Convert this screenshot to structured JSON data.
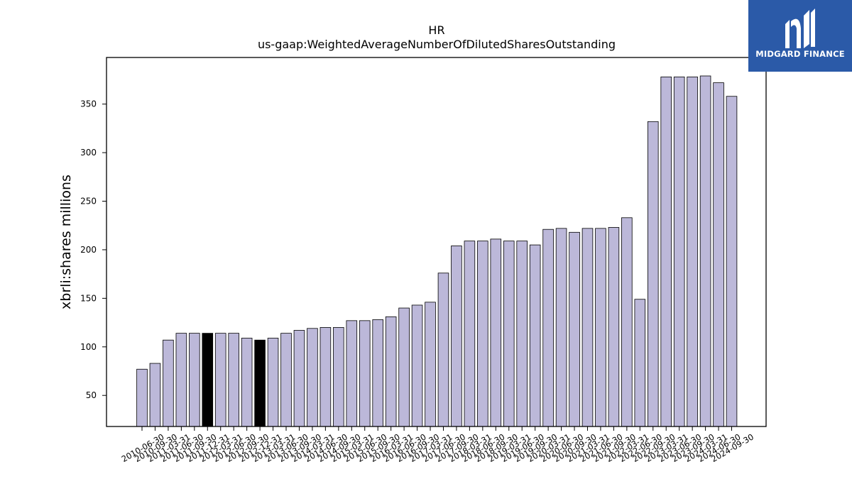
{
  "chart_data": {
    "type": "bar",
    "title": "HR",
    "subtitle": "us-gaap:WeightedAverageNumberOfDilutedSharesOutstanding",
    "xlabel": "",
    "ylabel": "xbrli:shares millions",
    "ylim": [
      18,
      398
    ],
    "yticks": [
      50,
      100,
      150,
      200,
      250,
      300,
      350
    ],
    "grid": false,
    "bar_color": "#bcb8d9",
    "highlight_color": "#000000",
    "categories": [
      "2010-06-30",
      "2010-09-30",
      "2011-03-31",
      "2011-06-30",
      "2011-09-30",
      "2011-12-31",
      "2012-03-31",
      "2012-06-30",
      "2012-09-30",
      "2012-12-31",
      "2013-03-31",
      "2013-06-30",
      "2013-09-30",
      "2014-03-31",
      "2014-06-30",
      "2014-09-30",
      "2015-03-31",
      "2015-06-30",
      "2015-09-30",
      "2016-03-31",
      "2016-06-30",
      "2016-09-30",
      "2017-03-31",
      "2017-06-30",
      "2017-09-30",
      "2018-03-31",
      "2018-06-30",
      "2018-09-30",
      "2019-03-31",
      "2019-06-30",
      "2019-09-30",
      "2020-03-31",
      "2020-06-30",
      "2020-09-30",
      "2021-03-31",
      "2021-06-30",
      "2021-09-30",
      "2022-03-31",
      "2022-06-30",
      "2022-09-30",
      "2023-03-31",
      "2023-06-30",
      "2023-09-30",
      "2024-03-31",
      "2024-06-30",
      "2024-09-30"
    ],
    "values": [
      77,
      83,
      107,
      114,
      114,
      114,
      114,
      114,
      109,
      107,
      109,
      114,
      117,
      119,
      120,
      120,
      127,
      127,
      128,
      131,
      140,
      143,
      146,
      176,
      204,
      209,
      209,
      211,
      209,
      209,
      205,
      221,
      222,
      218,
      222,
      222,
      223,
      233,
      149,
      332,
      378,
      378,
      378,
      379,
      372,
      358
    ],
    "highlighted": [
      false,
      false,
      false,
      false,
      false,
      true,
      false,
      false,
      false,
      true,
      false,
      false,
      false,
      false,
      false,
      false,
      false,
      false,
      false,
      false,
      false,
      false,
      false,
      false,
      false,
      false,
      false,
      false,
      false,
      false,
      false,
      false,
      false,
      false,
      false,
      false,
      false,
      false,
      false,
      false,
      false,
      false,
      false,
      false,
      false,
      false
    ]
  },
  "logo": {
    "text": "MIDGARD FINANCE",
    "background": "#2b5aa8",
    "icon_name": "midgard-logo-icon"
  }
}
